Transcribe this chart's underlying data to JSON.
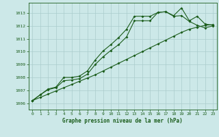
{
  "title": "Graphe pression niveau de la mer (hPa)",
  "background_color": "#cce8e8",
  "grid_color": "#aacccc",
  "line_color": "#1a5c1a",
  "xlim": [
    -0.5,
    23.5
  ],
  "ylim": [
    1005.5,
    1013.8
  ],
  "yticks": [
    1006,
    1007,
    1008,
    1009,
    1010,
    1011,
    1012,
    1013
  ],
  "xticks": [
    0,
    1,
    2,
    3,
    4,
    5,
    6,
    7,
    8,
    9,
    10,
    11,
    12,
    13,
    14,
    15,
    16,
    17,
    18,
    19,
    20,
    21,
    22,
    23
  ],
  "line1_x": [
    0,
    1,
    2,
    3,
    4,
    5,
    6,
    7,
    8,
    9,
    10,
    11,
    12,
    13,
    14,
    15,
    16,
    17,
    18,
    19,
    20,
    21,
    22,
    23
  ],
  "line1_y": [
    1006.2,
    1006.65,
    1007.1,
    1007.25,
    1008.0,
    1008.0,
    1008.1,
    1008.5,
    1009.35,
    1010.05,
    1010.55,
    1011.1,
    1011.75,
    1012.75,
    1012.75,
    1012.75,
    1013.05,
    1013.1,
    1012.8,
    1013.4,
    1012.4,
    1012.75,
    1012.15,
    1012.05
  ],
  "line2_x": [
    0,
    1,
    2,
    3,
    4,
    5,
    6,
    7,
    8,
    9,
    10,
    11,
    12,
    13,
    14,
    15,
    16,
    17,
    18,
    19,
    20,
    21,
    22,
    23
  ],
  "line2_y": [
    1006.2,
    1006.65,
    1007.05,
    1007.2,
    1007.75,
    1007.8,
    1007.9,
    1008.25,
    1009.0,
    1009.6,
    1010.1,
    1010.55,
    1011.15,
    1012.4,
    1012.4,
    1012.4,
    1013.05,
    1013.1,
    1012.75,
    1012.8,
    1012.35,
    1012.05,
    1011.85,
    1012.0
  ],
  "line3_x": [
    0,
    1,
    2,
    3,
    4,
    5,
    6,
    7,
    8,
    9,
    10,
    11,
    12,
    13,
    14,
    15,
    16,
    17,
    18,
    19,
    20,
    21,
    22,
    23
  ],
  "line3_y": [
    1006.2,
    1006.45,
    1006.7,
    1006.95,
    1007.2,
    1007.45,
    1007.7,
    1007.95,
    1008.2,
    1008.5,
    1008.8,
    1009.1,
    1009.4,
    1009.7,
    1010.0,
    1010.3,
    1010.6,
    1010.9,
    1011.2,
    1011.5,
    1011.75,
    1011.9,
    1012.05,
    1012.1
  ]
}
